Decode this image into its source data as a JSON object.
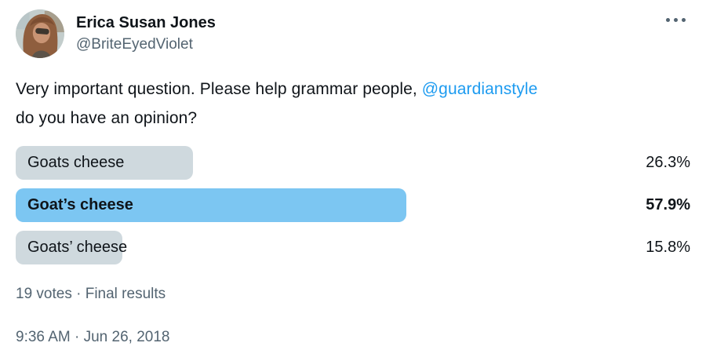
{
  "header": {
    "display_name": "Erica Susan Jones",
    "handle": "@BriteEyedViolet",
    "more_menu_icon": "ellipsis-horizontal"
  },
  "tweet": {
    "line1_before_mention": "Very important question. Please help grammar people, ",
    "mention": "@guardianstyle",
    "line2": "do you have an opinion?"
  },
  "poll": {
    "options": [
      {
        "label": "Goats cheese",
        "value": 26.3,
        "percent_label": "26.3%",
        "winner": false
      },
      {
        "label": "Goat’s cheese",
        "value": 57.9,
        "percent_label": "57.9%",
        "winner": true
      },
      {
        "label": "Goats’ cheese",
        "value": 15.8,
        "percent_label": "15.8%",
        "winner": false
      }
    ],
    "meta": "19 votes · Final results"
  },
  "footer": {
    "timestamp": "9:36 AM · Jun 26, 2018"
  },
  "chart_data": {
    "type": "bar",
    "orientation": "horizontal",
    "categories": [
      "Goats cheese",
      "Goat’s cheese",
      "Goats’ cheese"
    ],
    "values": [
      26.3,
      57.9,
      15.8
    ],
    "title": "",
    "xlabel": "",
    "ylabel": "",
    "xlim": [
      0,
      100
    ],
    "grid": false,
    "legend": false,
    "highlight_index": 1,
    "total_votes": 19
  },
  "colors": {
    "text": "#0F1419",
    "muted": "#536471",
    "link": "#1D9BF0",
    "bar_winner": "#7CC6F2",
    "bar_default": "#CFD9DE"
  }
}
